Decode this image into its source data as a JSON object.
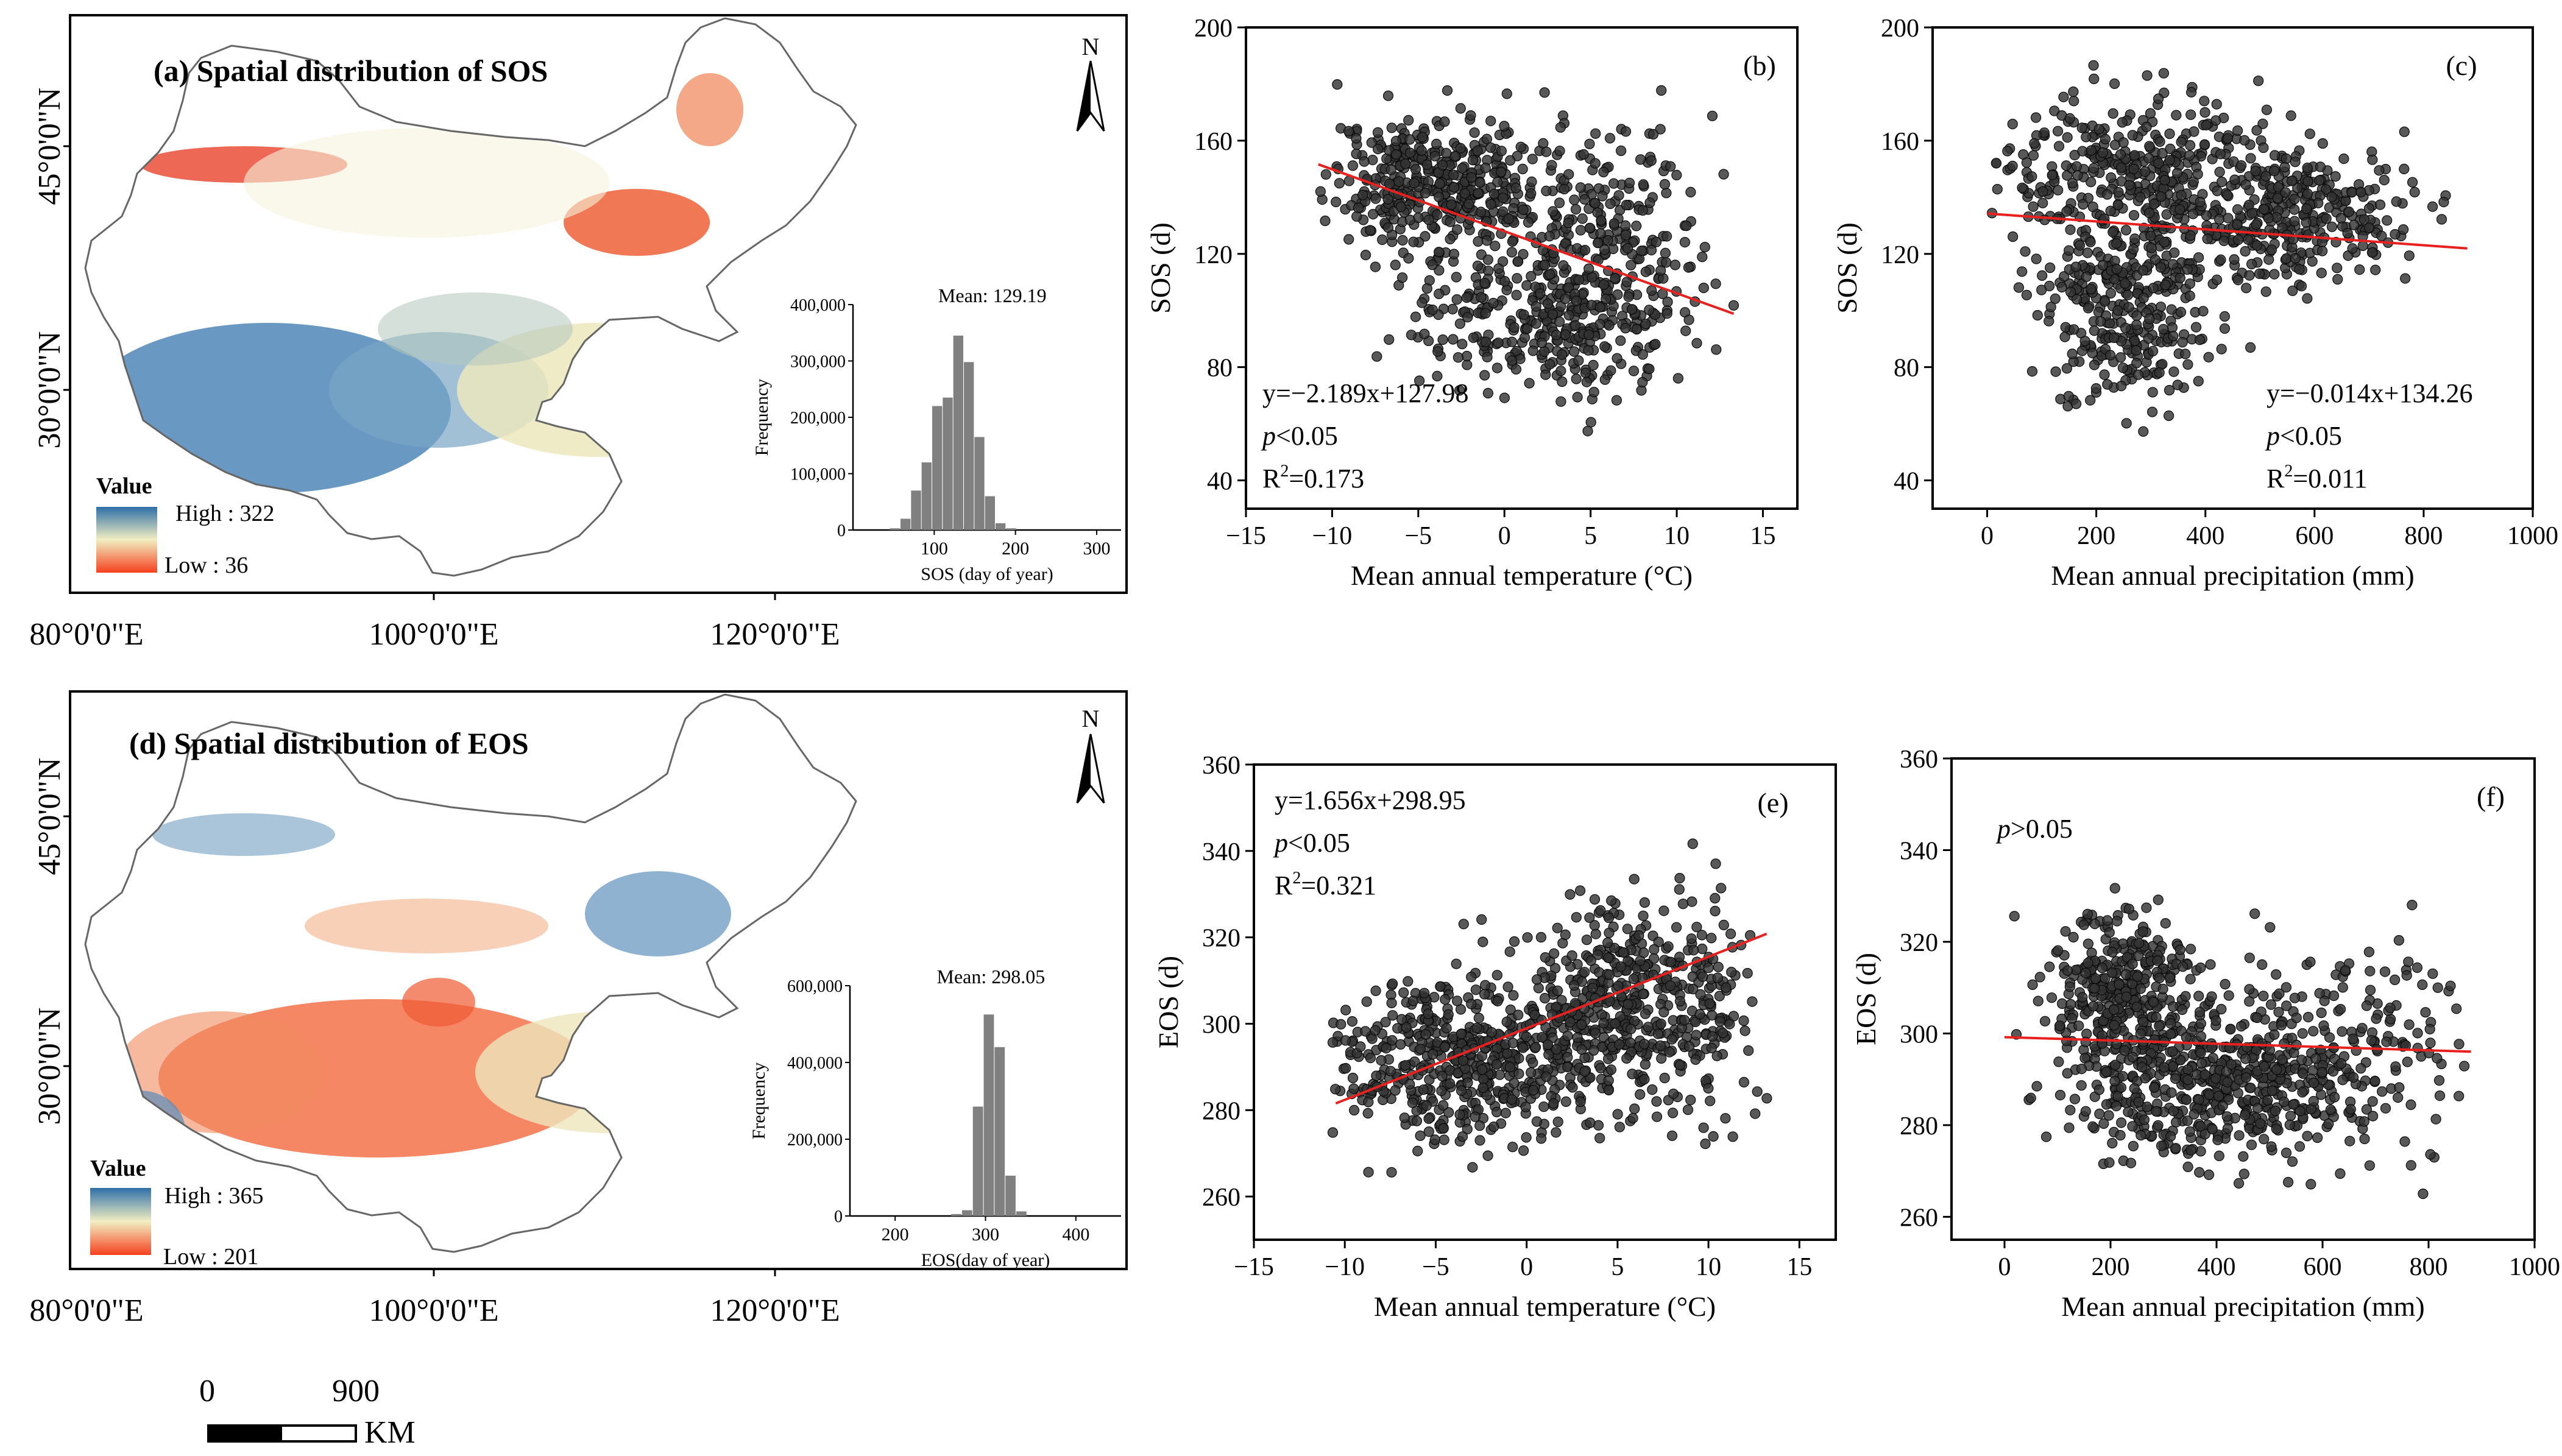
{
  "colors": {
    "axis": "#000000",
    "point": "#333333",
    "point_edge": "#0a0a0a",
    "fit_line": "#e8211f",
    "hist_bar": "#808080",
    "coast": "#666666",
    "ramp_high": "#2f6fa8",
    "ramp_mid": "#f2efc2",
    "ramp_low": "#f4401e",
    "background": "#ffffff"
  },
  "maps": [
    {
      "title": "(a) Spatial distribution of SOS",
      "north": "N",
      "lat_labels": [
        "45°0'0\"N",
        "30°0'0\"N"
      ],
      "lon_labels": [
        "80°0'0\"E",
        "100°0'0\"E",
        "120°0'0\"E"
      ],
      "legend_title": "Value",
      "legend_high": "High : 322",
      "legend_low": "Low : 36",
      "hist_mean": "Mean: 129.19",
      "hist_ylabel": "Frequency",
      "hist_xlabel": "SOS (day of year)",
      "color_scheme": "sos"
    },
    {
      "title": "(d) Spatial distribution of EOS",
      "north": "N",
      "lat_labels": [
        "45°0'0\"N",
        "30°0'0\"N"
      ],
      "lon_labels": [
        "80°0'0\"E",
        "100°0'0\"E",
        "120°0'0\"E"
      ],
      "legend_title": "Value",
      "legend_high": "High : 365",
      "legend_low": "Low : 201",
      "hist_mean": "Mean: 298.05",
      "hist_ylabel": "Frequency",
      "hist_xlabel": "EOS(day of year)",
      "color_scheme": "eos"
    }
  ],
  "scale_bar": {
    "label_start": "0",
    "label_end": "900",
    "unit": "KM"
  },
  "chart_data": [
    {
      "id": "hist-a",
      "type": "bar",
      "title": "Mean: 129.19",
      "xlabel": "SOS (day of year)",
      "ylabel": "Frequency",
      "xlim": [
        0,
        330
      ],
      "ylim": [
        0,
        400000
      ],
      "xticks": [
        100,
        200,
        300
      ],
      "yticks": [
        0,
        100000,
        200000,
        300000,
        400000
      ],
      "yticklabels": [
        "0",
        "100,000",
        "200,000",
        "300,000",
        "400,000"
      ],
      "bin_width": 13,
      "bars": [
        {
          "x": 52,
          "value": 3000
        },
        {
          "x": 65,
          "value": 20000
        },
        {
          "x": 78,
          "value": 70000
        },
        {
          "x": 91,
          "value": 120000
        },
        {
          "x": 104,
          "value": 220000
        },
        {
          "x": 117,
          "value": 235000
        },
        {
          "x": 130,
          "value": 345000
        },
        {
          "x": 143,
          "value": 298000
        },
        {
          "x": 156,
          "value": 165000
        },
        {
          "x": 169,
          "value": 60000
        },
        {
          "x": 182,
          "value": 12000
        },
        {
          "x": 195,
          "value": 3000
        }
      ]
    },
    {
      "id": "hist-d",
      "type": "bar",
      "title": "Mean: 298.05",
      "xlabel": "EOS(day of year)",
      "ylabel": "Frequency",
      "xlim": [
        150,
        450
      ],
      "ylim": [
        0,
        600000
      ],
      "xticks": [
        200,
        300,
        400
      ],
      "yticks": [
        0,
        200000,
        400000,
        600000
      ],
      "yticklabels": [
        "0",
        "200,000",
        "400,000",
        "600,000"
      ],
      "bin_width": 12,
      "bars": [
        {
          "x": 268,
          "value": 5000
        },
        {
          "x": 280,
          "value": 15000
        },
        {
          "x": 292,
          "value": 285000
        },
        {
          "x": 304,
          "value": 525000
        },
        {
          "x": 316,
          "value": 440000
        },
        {
          "x": 328,
          "value": 105000
        },
        {
          "x": 340,
          "value": 12000
        }
      ]
    },
    {
      "id": "scatter-b",
      "type": "scatter",
      "panel": "(b)",
      "xlabel": "Mean annual temperature (°C)",
      "ylabel": "SOS (d)",
      "xlim": [
        -15,
        17
      ],
      "ylim": [
        30,
        200
      ],
      "xticks": [
        -15,
        -10,
        -5,
        0,
        5,
        10,
        15
      ],
      "yticks": [
        40,
        80,
        120,
        160,
        200
      ],
      "equation": "y=−2.189x+127.98",
      "p_value": "p<0.05",
      "r2": "R2=0.173",
      "r2_value": 0.173,
      "fit": {
        "slope": -2.189,
        "intercept": 127.98,
        "x_range": [
          -10.8,
          13.3
        ]
      },
      "clusters": [
        {
          "count": 420,
          "x_mean": -4,
          "x_sd": 3.2,
          "y_mean": 145,
          "y_sd": 12,
          "x_min": -10.8,
          "x_max": 13.5,
          "y_min": 40,
          "y_max": 190
        },
        {
          "count": 380,
          "x_mean": 2.5,
          "x_sd": 3.5,
          "y_mean": 100,
          "y_sd": 14,
          "x_min": -10.8,
          "x_max": 13.5,
          "y_min": 40,
          "y_max": 190
        },
        {
          "count": 180,
          "x_mean": 6.5,
          "x_sd": 3,
          "y_mean": 132,
          "y_sd": 18,
          "x_min": -10.8,
          "x_max": 13.5,
          "y_min": 40,
          "y_max": 190
        }
      ]
    },
    {
      "id": "scatter-c",
      "type": "scatter",
      "panel": "(c)",
      "xlabel": "Mean annual precipitation (mm)",
      "ylabel": "SOS (d)",
      "xlim": [
        -100,
        1000
      ],
      "ylim": [
        30,
        200
      ],
      "xticks": [
        0,
        200,
        400,
        600,
        800,
        1000
      ],
      "yticks": [
        40,
        80,
        120,
        160,
        200
      ],
      "equation": "y=−0.014x+134.26",
      "p_value": "p<0.05",
      "r2": "R2=0.011",
      "r2_value": 0.011,
      "fit": {
        "slope": -0.014,
        "intercept": 134.26,
        "x_range": [
          0,
          880
        ]
      },
      "clusters": [
        {
          "count": 380,
          "x_mean": 250,
          "x_sd": 140,
          "y_mean": 148,
          "y_sd": 14,
          "x_min": 5,
          "x_max": 880,
          "y_min": 45,
          "y_max": 190
        },
        {
          "count": 320,
          "x_mean": 250,
          "x_sd": 80,
          "y_mean": 100,
          "y_sd": 18,
          "x_min": 5,
          "x_max": 880,
          "y_min": 45,
          "y_max": 190
        },
        {
          "count": 330,
          "x_mean": 560,
          "x_sd": 110,
          "y_mean": 132,
          "y_sd": 12,
          "x_min": 5,
          "x_max": 880,
          "y_min": 45,
          "y_max": 190
        }
      ]
    },
    {
      "id": "scatter-e",
      "type": "scatter",
      "panel": "(e)",
      "xlabel": "Mean annual temperature  (°C)",
      "ylabel": "EOS (d)",
      "xlim": [
        -15,
        17
      ],
      "ylim": [
        250,
        360
      ],
      "xticks": [
        -15,
        -10,
        -5,
        0,
        5,
        10,
        15
      ],
      "yticks": [
        260,
        280,
        300,
        320,
        340,
        360
      ],
      "equation": "y=1.656x+298.95",
      "p_value": "p<0.05",
      "r2": "R2=0.321",
      "r2_value": 0.321,
      "fit": {
        "slope": 1.656,
        "intercept": 298.95,
        "x_range": [
          -10.5,
          13.2
        ]
      },
      "clusters": [
        {
          "count": 560,
          "x_mean": -3,
          "x_sd": 4,
          "y_mean": 292,
          "y_sd": 9,
          "x_min": -10.8,
          "x_max": 13.5,
          "y_min": 256,
          "y_max": 348
        },
        {
          "count": 320,
          "x_mean": 5,
          "x_sd": 3,
          "y_mean": 307,
          "y_sd": 10,
          "x_min": -10.8,
          "x_max": 13.5,
          "y_min": 256,
          "y_max": 348
        },
        {
          "count": 150,
          "x_mean": 8.5,
          "x_sd": 2.2,
          "y_mean": 298,
          "y_sd": 13,
          "x_min": -10.8,
          "x_max": 13.5,
          "y_min": 256,
          "y_max": 348
        }
      ]
    },
    {
      "id": "scatter-f",
      "type": "scatter",
      "panel": "(f)",
      "xlabel": "Mean annual precipitation  (mm)",
      "ylabel": "EOS (d)",
      "xlim": [
        -100,
        1000
      ],
      "ylim": [
        255,
        360
      ],
      "xticks": [
        0,
        200,
        400,
        600,
        800,
        1000
      ],
      "yticks": [
        260,
        280,
        300,
        320,
        340,
        360
      ],
      "p_value": "p>0.05",
      "fit": {
        "slope": -0.0036,
        "intercept": 299.2,
        "x_range": [
          0,
          880
        ]
      },
      "clusters": [
        {
          "count": 360,
          "x_mean": 230,
          "x_sd": 70,
          "y_mean": 308,
          "y_sd": 9,
          "x_min": 5,
          "x_max": 880,
          "y_min": 258,
          "y_max": 346
        },
        {
          "count": 420,
          "x_mean": 380,
          "x_sd": 140,
          "y_mean": 288,
          "y_sd": 8,
          "x_min": 5,
          "x_max": 880,
          "y_min": 258,
          "y_max": 346
        },
        {
          "count": 260,
          "x_mean": 600,
          "x_sd": 140,
          "y_mean": 296,
          "y_sd": 11,
          "x_min": 5,
          "x_max": 880,
          "y_min": 258,
          "y_max": 346
        }
      ]
    }
  ]
}
